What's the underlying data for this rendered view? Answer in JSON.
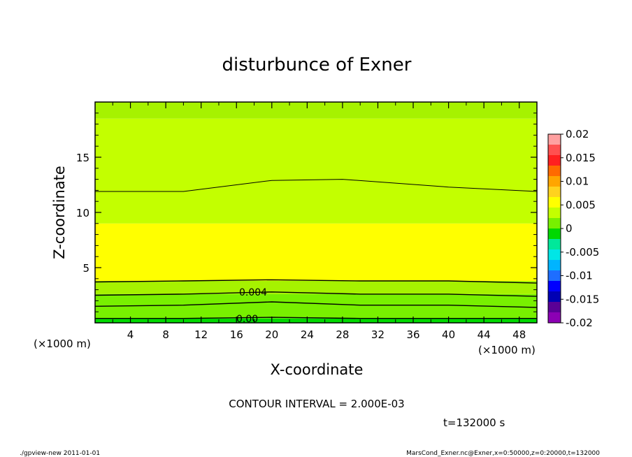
{
  "chart_data": {
    "type": "heatmap",
    "title": "disturbunce of Exner",
    "xlabel": "X-coordinate",
    "ylabel": "Z-coordinate",
    "x_unit": "(×1000 m)",
    "y_unit": "(×1000 m)",
    "xlim": [
      0,
      50
    ],
    "ylim": [
      0,
      20
    ],
    "x_ticks": [
      "4",
      "8",
      "12",
      "16",
      "20",
      "24",
      "28",
      "32",
      "36",
      "40",
      "44",
      "48"
    ],
    "y_ticks": [
      "5",
      "10",
      "15"
    ],
    "contour_interval_text": "CONTOUR INTERVAL = 2.000E-03",
    "contour_labels": [
      "0.004",
      "0.00"
    ],
    "time_text": "t=132000 s",
    "colorbar": {
      "labels": [
        "0.02",
        "0.015",
        "0.01",
        "0.005",
        "0",
        "-0.005",
        "-0.01",
        "-0.015",
        "-0.02"
      ],
      "colors": [
        "#ffa0a0",
        "#ff5050",
        "#ff2020",
        "#ff6a00",
        "#ffa500",
        "#ffd21e",
        "#ffff00",
        "#c3ff00",
        "#78f000",
        "#00d800",
        "#00e89a",
        "#00e6e6",
        "#00b4ff",
        "#1e6eff",
        "#0000ff",
        "#0000b4",
        "#5a0096",
        "#8c00b4"
      ]
    },
    "field_bands_z_thousand_m": [
      {
        "z_from": 0,
        "z_to": 0.4,
        "level_color": "#00d800"
      },
      {
        "z_from": 0.4,
        "z_to": 2.6,
        "level_color": "#78f000"
      },
      {
        "z_from": 2.6,
        "z_to": 3.8,
        "level_color": "#a6f200"
      },
      {
        "z_from": 3.8,
        "z_to": 9,
        "level_color": "#ffff00"
      },
      {
        "z_from": 9,
        "z_to": 18.5,
        "level_color": "#c3ff00"
      },
      {
        "z_from": 18.5,
        "z_to": 20,
        "level_color": "#a6f200"
      }
    ],
    "contours_z_thousand_m": [
      {
        "x": [
          0,
          10,
          20,
          28,
          40,
          50
        ],
        "z": [
          11.9,
          11.9,
          12.9,
          13.0,
          12.3,
          11.9
        ]
      },
      {
        "x": [
          0,
          10,
          20,
          30,
          40,
          50
        ],
        "z": [
          3.7,
          3.8,
          3.9,
          3.8,
          3.8,
          3.6
        ]
      },
      {
        "x": [
          0,
          10,
          20,
          30,
          40,
          50
        ],
        "z": [
          2.5,
          2.6,
          2.8,
          2.6,
          2.6,
          2.4
        ]
      },
      {
        "x": [
          0,
          10,
          20,
          30,
          40,
          50
        ],
        "z": [
          1.5,
          1.6,
          1.9,
          1.6,
          1.6,
          1.4
        ]
      },
      {
        "x": [
          0,
          10,
          20,
          30,
          40,
          50
        ],
        "z": [
          0.4,
          0.4,
          0.5,
          0.4,
          0.4,
          0.4
        ]
      }
    ]
  },
  "footer": {
    "left": "./gpview-new   2011-01-01",
    "right": "MarsCond_Exner.nc@Exner,x=0:50000,z=0:20000,t=132000"
  }
}
